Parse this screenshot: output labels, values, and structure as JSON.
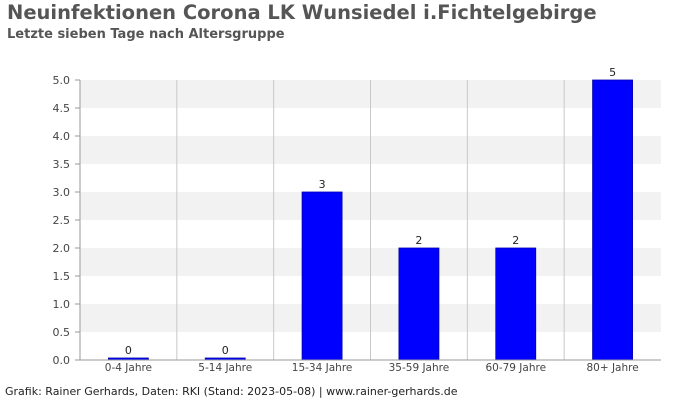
{
  "title": "Neuinfektionen Corona LK Wunsiedel i.Fichtelgebirge",
  "subtitle": "Letzte sieben Tage nach Altersgruppe",
  "footer": "Grafik: Rainer Gerhards, Daten: RKI (Stand: 2023-05-08) | www.rainer-gerhards.de",
  "colors": {
    "bar": "#0000ff",
    "band": "#f2f2f2",
    "grid": "#c8c8c8",
    "axis": "#999999"
  },
  "chart_data": {
    "type": "bar",
    "title": "Neuinfektionen Corona LK Wunsiedel i.Fichtelgebirge",
    "subtitle": "Letzte sieben Tage nach Altersgruppe",
    "categories": [
      "0-4 Jahre",
      "5-14 Jahre",
      "15-34 Jahre",
      "35-59 Jahre",
      "60-79 Jahre",
      "80+ Jahre"
    ],
    "values": [
      0,
      0,
      3,
      2,
      2,
      5
    ],
    "data_labels": [
      "0",
      "0",
      "3",
      "2",
      "2",
      "5"
    ],
    "ylim": [
      0,
      5
    ],
    "yticks": [
      "0.0",
      "0.5",
      "1.0",
      "1.5",
      "2.0",
      "2.5",
      "3.0",
      "3.5",
      "4.0",
      "4.5",
      "5.0"
    ],
    "xlabel": "",
    "ylabel": "",
    "grid": true
  }
}
